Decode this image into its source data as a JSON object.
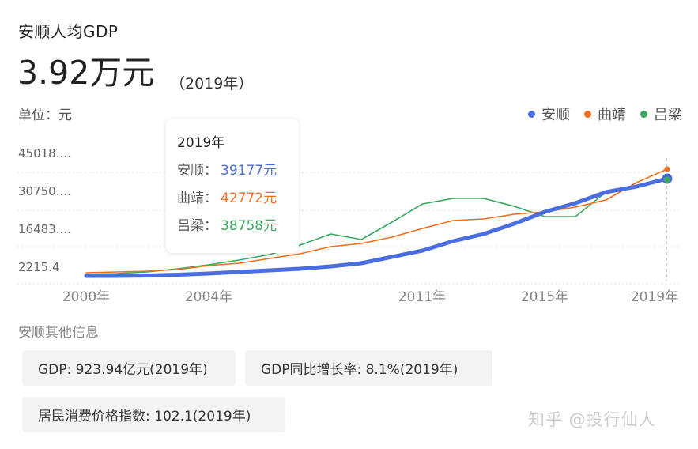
{
  "header": {
    "title": "安顺人均GDP",
    "value": "3.92万元",
    "year": "（2019年）",
    "unit": "单位：元"
  },
  "legend": [
    {
      "name": "安顺",
      "color": "#4a6ee0"
    },
    {
      "name": "曲靖",
      "color": "#f06e1e"
    },
    {
      "name": "吕梁",
      "color": "#3aa760"
    }
  ],
  "tooltip": {
    "year": "2019年",
    "rows": [
      {
        "label": "安顺：",
        "value": "39177元",
        "color": "#4a6ee0"
      },
      {
        "label": "曲靖：",
        "value": "42772元",
        "color": "#f06e1e"
      },
      {
        "label": "吕梁：",
        "value": "38758元",
        "color": "#3aa760"
      }
    ]
  },
  "info": {
    "section_title": "安顺其他信息",
    "chips": [
      "GDP: 923.94亿元(2019年)",
      "GDP同比增长率: 8.1%(2019年)",
      "居民消费价格指数: 102.1(2019年)"
    ]
  },
  "watermark": "知乎 @投行仙人",
  "chart_data": {
    "type": "line",
    "title": "安顺人均GDP",
    "ylabel": "单位：元",
    "xlabel": "",
    "x": [
      2000,
      2001,
      2002,
      2003,
      2004,
      2005,
      2006,
      2007,
      2008,
      2009,
      2010,
      2011,
      2012,
      2013,
      2014,
      2015,
      2016,
      2017,
      2018,
      2019
    ],
    "x_tick_labels": [
      "2000年",
      "2004年",
      "2011年",
      "2015年",
      "2019年"
    ],
    "y_tick_labels": [
      "45018....",
      "30750....",
      "16483....",
      "2215.4"
    ],
    "ylim": [
      2215.4,
      45018
    ],
    "grid": true,
    "legend_position": "top-right",
    "series": [
      {
        "name": "安顺",
        "color": "#4a6ee0",
        "values": [
          2277,
          2277,
          2427,
          2727,
          3177,
          3777,
          4377,
          4977,
          5877,
          7077,
          9477,
          11877,
          15477,
          18177,
          22077,
          26577,
          29877,
          34077,
          36177,
          39177
        ]
      },
      {
        "name": "曲靖",
        "color": "#f06e1e",
        "values": [
          3477,
          3777,
          4077,
          4677,
          6177,
          7077,
          8877,
          10677,
          13377,
          14577,
          16977,
          20277,
          23277,
          23877,
          25677,
          26577,
          28377,
          31077,
          37677,
          42772
        ]
      },
      {
        "name": "吕梁",
        "color": "#3aa760",
        "values": [
          2877,
          3177,
          3777,
          4977,
          6477,
          8277,
          10377,
          13977,
          18177,
          16077,
          22677,
          29577,
          31677,
          31677,
          28677,
          24777,
          24777,
          34077,
          36177,
          38758
        ]
      }
    ]
  }
}
